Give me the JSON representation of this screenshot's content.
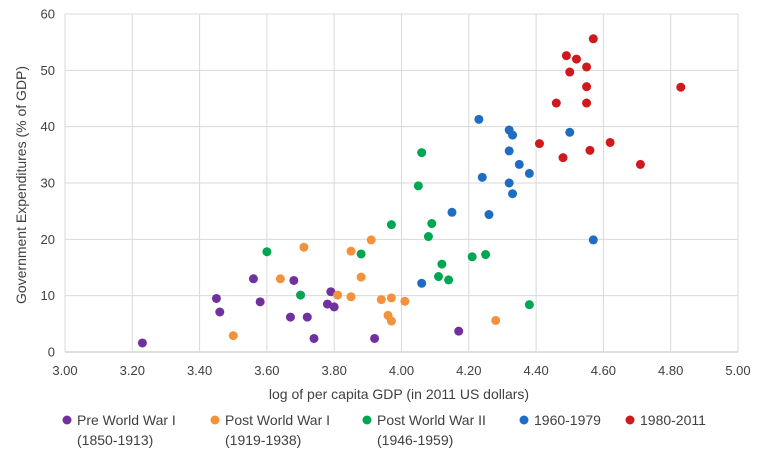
{
  "chart_data": {
    "type": "scatter",
    "title": "",
    "xlabel": "log of per capita GDP (in 2011 US dollars)",
    "ylabel": "Government Expenditures (% of GDP)",
    "xlim": [
      3.0,
      5.0
    ],
    "ylim": [
      0,
      60
    ],
    "x_ticks": [
      "3.00",
      "3.20",
      "3.40",
      "3.60",
      "3.80",
      "4.00",
      "4.20",
      "4.40",
      "4.60",
      "4.80",
      "5.00"
    ],
    "y_ticks": [
      "0",
      "10",
      "20",
      "30",
      "40",
      "50",
      "60"
    ],
    "grid": "vertical and horizontal",
    "legend_position": "bottom",
    "series": [
      {
        "name": "Pre World War I",
        "name_line2": "(1850-1913)",
        "color": "#7030a0",
        "points": [
          {
            "x": 3.23,
            "y": 1.6
          },
          {
            "x": 3.45,
            "y": 9.5
          },
          {
            "x": 3.46,
            "y": 7.1
          },
          {
            "x": 3.56,
            "y": 13.0
          },
          {
            "x": 3.58,
            "y": 8.9
          },
          {
            "x": 3.67,
            "y": 6.2
          },
          {
            "x": 3.68,
            "y": 12.7
          },
          {
            "x": 3.72,
            "y": 6.2
          },
          {
            "x": 3.74,
            "y": 2.4
          },
          {
            "x": 3.78,
            "y": 8.5
          },
          {
            "x": 3.79,
            "y": 10.7
          },
          {
            "x": 3.8,
            "y": 8.0
          },
          {
            "x": 3.92,
            "y": 2.4
          },
          {
            "x": 4.17,
            "y": 3.7
          }
        ]
      },
      {
        "name": "Post World War I",
        "name_line2": "(1919-1938)",
        "color": "#f4913b",
        "points": [
          {
            "x": 3.5,
            "y": 2.9
          },
          {
            "x": 3.64,
            "y": 13.0
          },
          {
            "x": 3.71,
            "y": 18.6
          },
          {
            "x": 3.81,
            "y": 10.1
          },
          {
            "x": 3.85,
            "y": 17.9
          },
          {
            "x": 3.85,
            "y": 9.8
          },
          {
            "x": 3.88,
            "y": 13.3
          },
          {
            "x": 3.91,
            "y": 19.9
          },
          {
            "x": 3.94,
            "y": 9.3
          },
          {
            "x": 3.96,
            "y": 6.5
          },
          {
            "x": 3.97,
            "y": 9.6
          },
          {
            "x": 3.97,
            "y": 5.5
          },
          {
            "x": 4.01,
            "y": 9.0
          },
          {
            "x": 4.28,
            "y": 5.6
          }
        ]
      },
      {
        "name": "Post World War II",
        "name_line2": "(1946-1959)",
        "color": "#00a651",
        "points": [
          {
            "x": 3.6,
            "y": 17.8
          },
          {
            "x": 3.7,
            "y": 10.1
          },
          {
            "x": 3.88,
            "y": 17.4
          },
          {
            "x": 3.97,
            "y": 22.6
          },
          {
            "x": 4.05,
            "y": 29.5
          },
          {
            "x": 4.06,
            "y": 35.4
          },
          {
            "x": 4.08,
            "y": 20.5
          },
          {
            "x": 4.09,
            "y": 22.8
          },
          {
            "x": 4.11,
            "y": 13.4
          },
          {
            "x": 4.12,
            "y": 15.6
          },
          {
            "x": 4.14,
            "y": 12.8
          },
          {
            "x": 4.21,
            "y": 16.9
          },
          {
            "x": 4.25,
            "y": 17.3
          },
          {
            "x": 4.38,
            "y": 8.4
          }
        ]
      },
      {
        "name": "1960-1979",
        "name_line2": "",
        "color": "#1f6cc4",
        "points": [
          {
            "x": 4.06,
            "y": 12.2
          },
          {
            "x": 4.15,
            "y": 24.8
          },
          {
            "x": 4.23,
            "y": 41.3
          },
          {
            "x": 4.24,
            "y": 31.0
          },
          {
            "x": 4.26,
            "y": 24.4
          },
          {
            "x": 4.32,
            "y": 30.0
          },
          {
            "x": 4.32,
            "y": 39.4
          },
          {
            "x": 4.32,
            "y": 35.7
          },
          {
            "x": 4.33,
            "y": 38.5
          },
          {
            "x": 4.33,
            "y": 28.1
          },
          {
            "x": 4.35,
            "y": 33.3
          },
          {
            "x": 4.38,
            "y": 31.7
          },
          {
            "x": 4.5,
            "y": 39.0
          },
          {
            "x": 4.57,
            "y": 19.9
          }
        ]
      },
      {
        "name": "1980-2011",
        "name_line2": "",
        "color": "#d0191c",
        "points": [
          {
            "x": 4.41,
            "y": 37.0
          },
          {
            "x": 4.46,
            "y": 44.2
          },
          {
            "x": 4.48,
            "y": 34.5
          },
          {
            "x": 4.49,
            "y": 52.6
          },
          {
            "x": 4.5,
            "y": 49.7
          },
          {
            "x": 4.52,
            "y": 52.0
          },
          {
            "x": 4.55,
            "y": 50.6
          },
          {
            "x": 4.55,
            "y": 47.1
          },
          {
            "x": 4.55,
            "y": 44.2
          },
          {
            "x": 4.56,
            "y": 35.8
          },
          {
            "x": 4.57,
            "y": 55.6
          },
          {
            "x": 4.62,
            "y": 37.2
          },
          {
            "x": 4.71,
            "y": 33.3
          },
          {
            "x": 4.83,
            "y": 47.0
          }
        ]
      }
    ]
  }
}
